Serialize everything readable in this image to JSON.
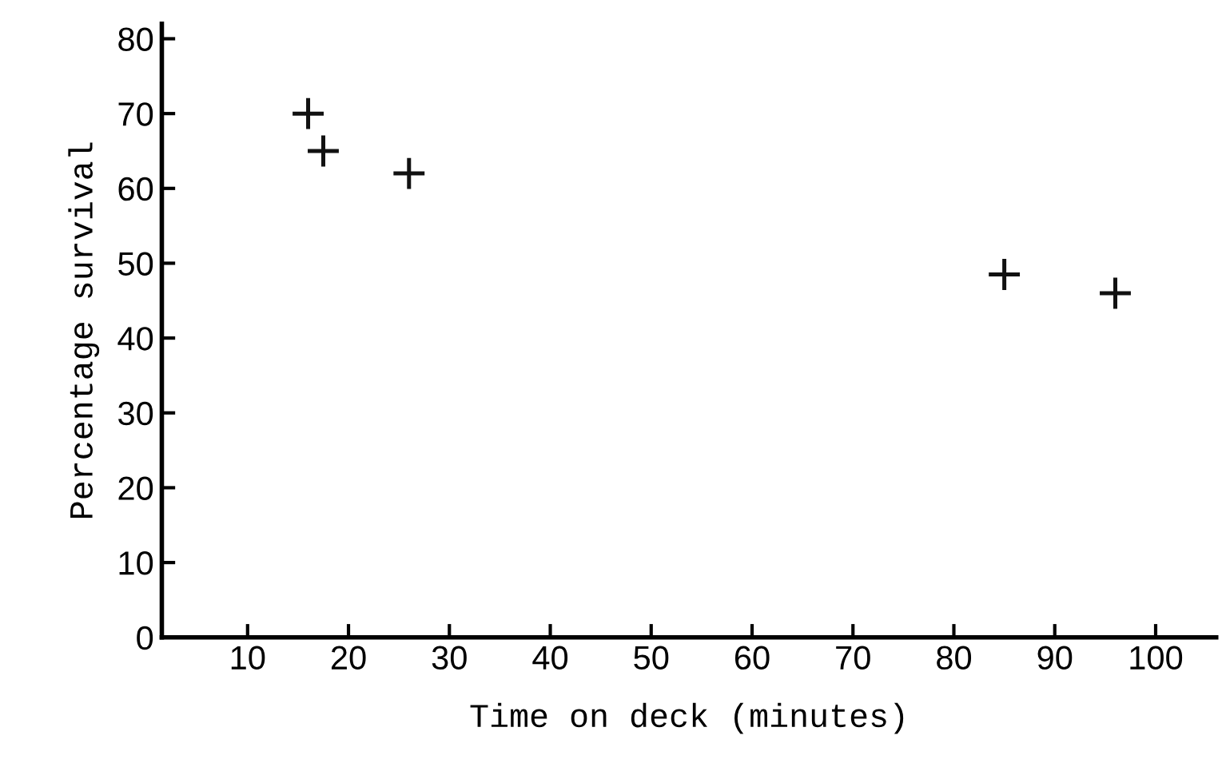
{
  "chart_data": {
    "type": "scatter",
    "xlabel": "Time on deck (minutes)",
    "ylabel": "Percentage survival",
    "x": [
      16,
      17.5,
      26,
      85,
      96
    ],
    "values": [
      70,
      65,
      62,
      48.5,
      46
    ],
    "color": "#111111",
    "marker": "cross",
    "xlim": [
      1.5,
      106
    ],
    "xticks": [
      10,
      20,
      30,
      40,
      50,
      60,
      70,
      80,
      90,
      100
    ],
    "ylim": [
      0,
      82
    ],
    "yticks": [
      0,
      10,
      20,
      30,
      40,
      50,
      60,
      70,
      80
    ],
    "grid": false
  }
}
